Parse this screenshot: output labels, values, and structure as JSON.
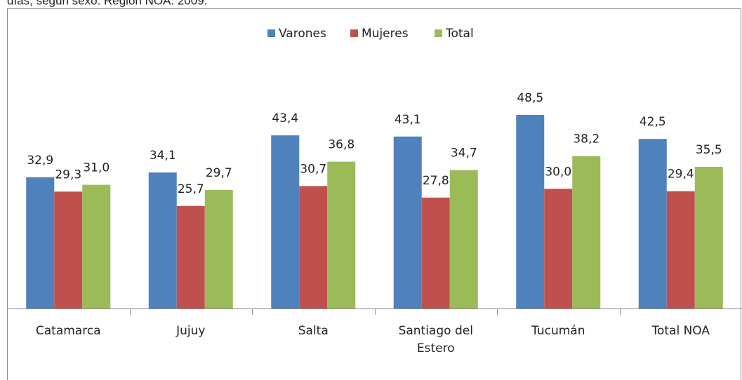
{
  "chart_data": {
    "type": "bar",
    "title": "días, según sexo. Región NOA. 2009.",
    "categories": [
      "Catamarca",
      "Jujuy",
      "Salta",
      "Santiago del Estero",
      "Tucumán",
      "Total NOA"
    ],
    "series": [
      {
        "name": "Varones",
        "color": "#4f81bd",
        "values": [
          32.9,
          34.1,
          43.4,
          43.1,
          48.5,
          42.5
        ],
        "value_labels": [
          "32,9",
          "34,1",
          "43,4",
          "43,1",
          "48,5",
          "42,5"
        ]
      },
      {
        "name": "Mujeres",
        "color": "#c0504d",
        "values": [
          29.3,
          25.7,
          30.7,
          27.8,
          30.0,
          29.4
        ],
        "value_labels": [
          "29,3",
          "25,7",
          "30,7",
          "27,8",
          "30,0",
          "29,4"
        ]
      },
      {
        "name": "Total",
        "color": "#9bbb59",
        "values": [
          31.0,
          29.7,
          36.8,
          34.7,
          38.2,
          35.5
        ],
        "value_labels": [
          "31,0",
          "29,7",
          "36,8",
          "34,7",
          "38,2",
          "35,5"
        ]
      }
    ],
    "ylim": [
      0,
      60
    ],
    "legend": "top"
  }
}
